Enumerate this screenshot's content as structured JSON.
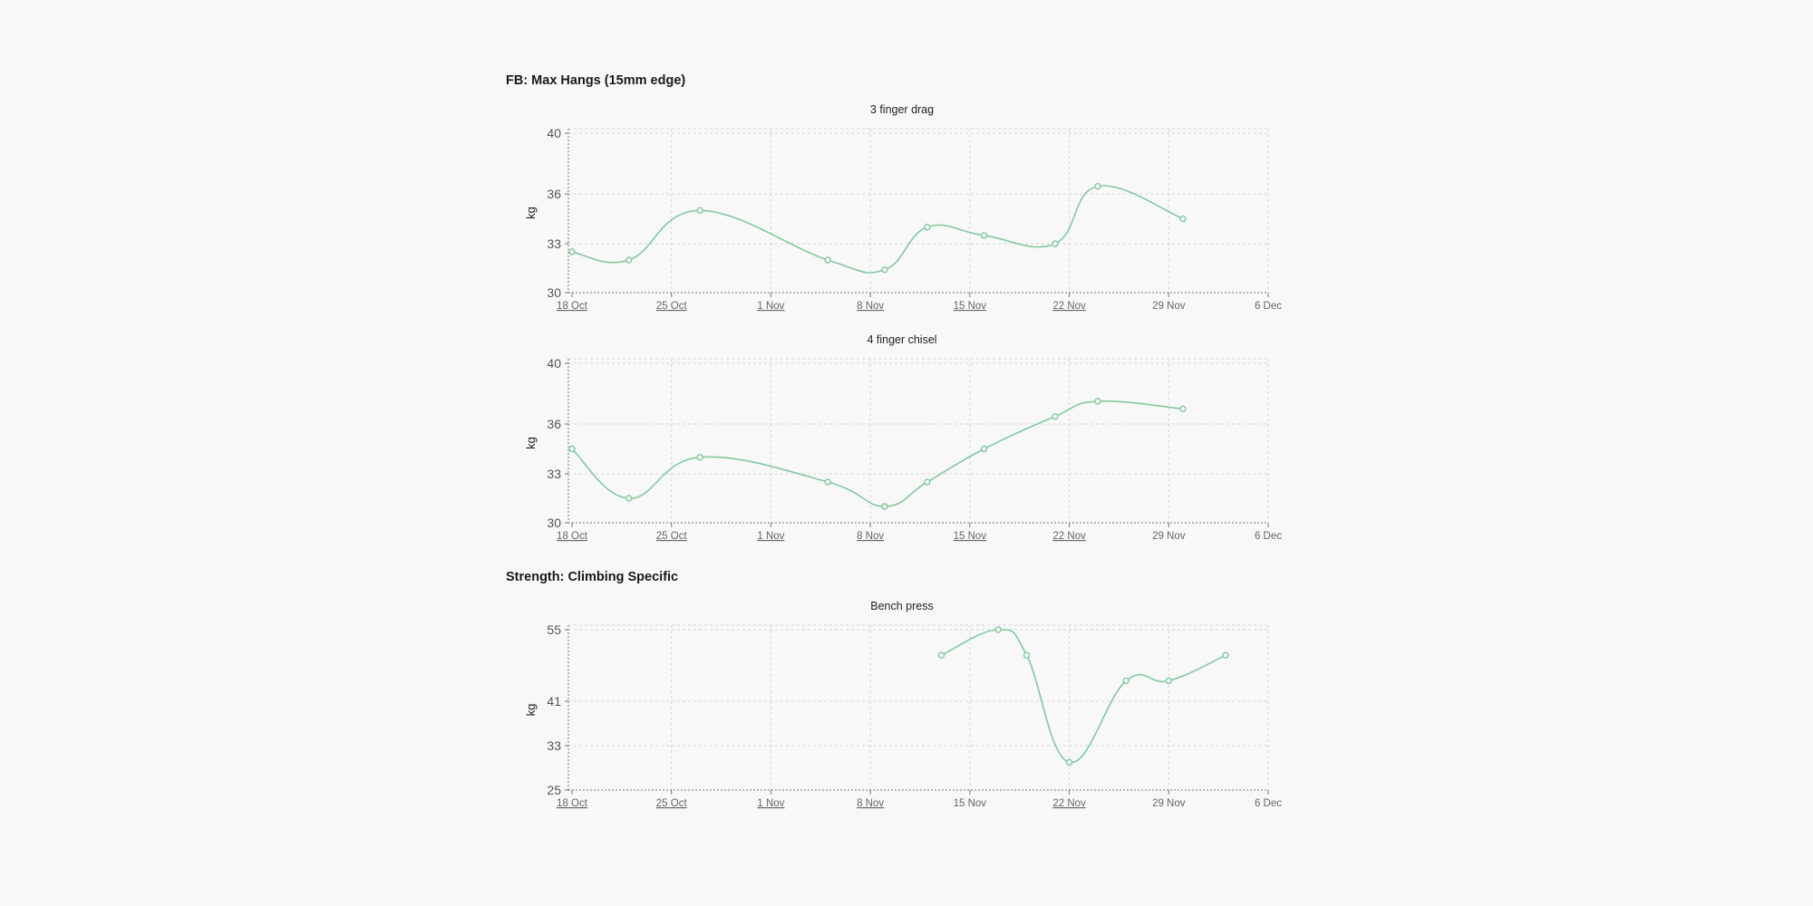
{
  "colors": {
    "series": "#82c9a0",
    "background": "#f8f8f8"
  },
  "sections": [
    {
      "title": "FB: Max Hangs (15mm edge)"
    },
    {
      "title": "Strength: Climbing Specific"
    }
  ],
  "chart_data": [
    {
      "type": "line",
      "section": 0,
      "title": "3 finger drag",
      "ylabel": "kg",
      "x_domain": [
        "2023-10-18",
        "2023-12-06"
      ],
      "yticks": [
        30,
        33,
        36,
        40
      ],
      "ylim": [
        30,
        40
      ],
      "x_tick_labels": [
        "18 Oct",
        "25 Oct",
        "1 Nov",
        "8 Nov",
        "15 Nov",
        "22 Nov",
        "29 Nov",
        "6 Dec"
      ],
      "x_tick_links": [
        true,
        true,
        true,
        true,
        true,
        true,
        false,
        false
      ],
      "grid": true,
      "series": [
        {
          "x": [
            "2023-10-18",
            "2023-10-22",
            "2023-10-27",
            "2023-11-05",
            "2023-11-09",
            "2023-11-12",
            "2023-11-16",
            "2023-11-21",
            "2023-11-24",
            "2023-11-30"
          ],
          "values": [
            32.5,
            32,
            35,
            32,
            31.4,
            34,
            33.5,
            33,
            36.5,
            34.5
          ]
        }
      ]
    },
    {
      "type": "line",
      "section": 0,
      "title": "4 finger chisel",
      "ylabel": "kg",
      "x_domain": [
        "2023-10-18",
        "2023-12-06"
      ],
      "yticks": [
        30,
        33,
        36,
        40
      ],
      "ylim": [
        30,
        40
      ],
      "x_tick_labels": [
        "18 Oct",
        "25 Oct",
        "1 Nov",
        "8 Nov",
        "15 Nov",
        "22 Nov",
        "29 Nov",
        "6 Dec"
      ],
      "x_tick_links": [
        true,
        true,
        true,
        true,
        true,
        true,
        false,
        false
      ],
      "grid": true,
      "series": [
        {
          "x": [
            "2023-10-18",
            "2023-10-22",
            "2023-10-27",
            "2023-11-05",
            "2023-11-09",
            "2023-11-12",
            "2023-11-16",
            "2023-11-21",
            "2023-11-24",
            "2023-11-30"
          ],
          "values": [
            34.5,
            31.5,
            34,
            32.5,
            31,
            32.5,
            34.5,
            36.5,
            37.5,
            37
          ]
        }
      ]
    },
    {
      "type": "line",
      "section": 1,
      "title": "Bench press",
      "ylabel": "kg",
      "x_domain": [
        "2023-10-18",
        "2023-12-06"
      ],
      "yticks": [
        25,
        33,
        41,
        55
      ],
      "ylim": [
        25,
        55
      ],
      "x_tick_labels": [
        "18 Oct",
        "25 Oct",
        "1 Nov",
        "8 Nov",
        "15 Nov",
        "22 Nov",
        "29 Nov",
        "6 Dec"
      ],
      "x_tick_links": [
        true,
        true,
        true,
        true,
        false,
        true,
        false,
        false
      ],
      "grid": true,
      "series": [
        {
          "x": [
            "2023-11-13",
            "2023-11-17",
            "2023-11-19",
            "2023-11-22",
            "2023-11-26",
            "2023-11-29",
            "2023-12-03"
          ],
          "values": [
            50,
            55,
            50,
            30,
            45,
            45,
            50
          ]
        }
      ]
    }
  ]
}
